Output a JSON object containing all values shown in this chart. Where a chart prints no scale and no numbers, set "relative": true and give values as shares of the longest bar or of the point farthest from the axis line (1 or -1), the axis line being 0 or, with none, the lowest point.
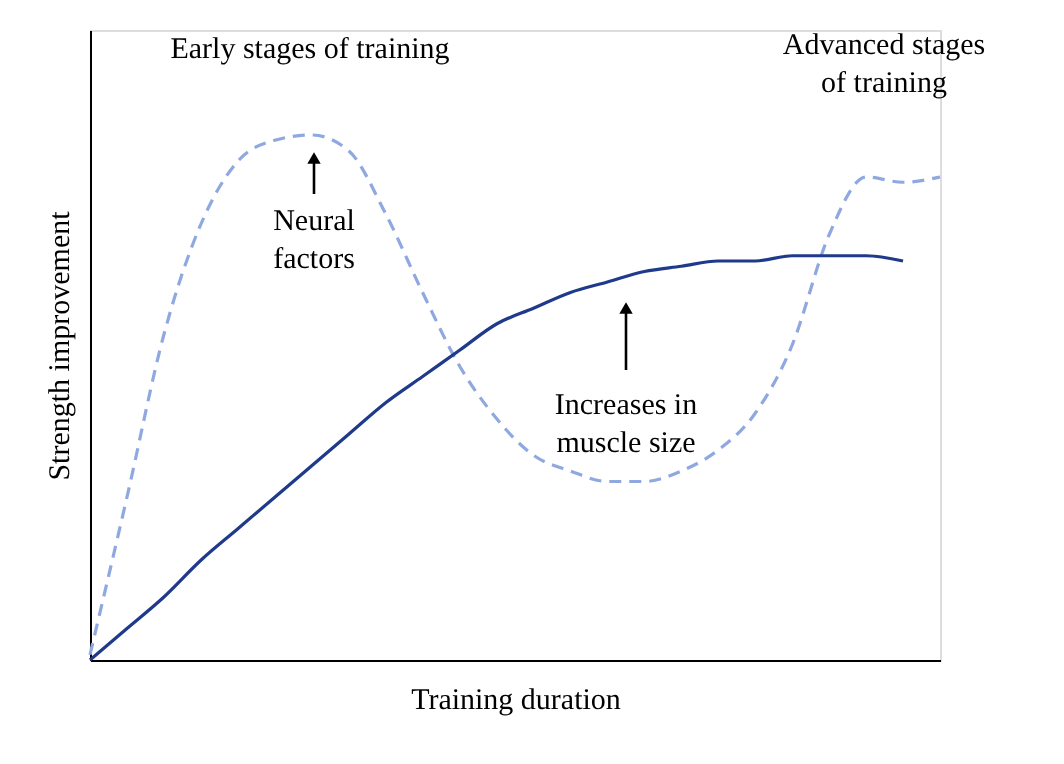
{
  "chart_data": {
    "type": "line",
    "relative": true,
    "xlabel": "Training duration",
    "ylabel": "Strength improvement",
    "categories": [
      null,
      null,
      null,
      null,
      null,
      null,
      null,
      null,
      null,
      null,
      null,
      null,
      null,
      null,
      null,
      null,
      null,
      null,
      null,
      null,
      null,
      null,
      null,
      null
    ],
    "series": [
      {
        "color": "#8fa8e0",
        "line_style": "dashed",
        "values": [
          0.01,
          0.31,
          0.62,
          0.83,
          0.95,
          0.99,
          1.0,
          0.97,
          0.85,
          0.7,
          0.56,
          0.46,
          0.39,
          0.36,
          0.34,
          0.34,
          0.36,
          0.4,
          0.47,
          0.6,
          0.81,
          0.92,
          0.91,
          0.92
        ]
      },
      {
        "color": "#1f3a8a",
        "line_style": "solid",
        "values": [
          0,
          0.06,
          0.12,
          0.19,
          0.25,
          0.31,
          0.37,
          0.43,
          0.49,
          0.54,
          0.59,
          0.64,
          0.67,
          0.7,
          0.72,
          0.74,
          0.75,
          0.76,
          0.76,
          0.77,
          0.77,
          0.77,
          0.76,
          null
        ]
      }
    ],
    "annotations": [
      "Early stages of training",
      "Advanced stages\nof training",
      "Neural\nfactors",
      "Increases in\nmuscle size"
    ],
    "grid": false,
    "marker": "none"
  }
}
